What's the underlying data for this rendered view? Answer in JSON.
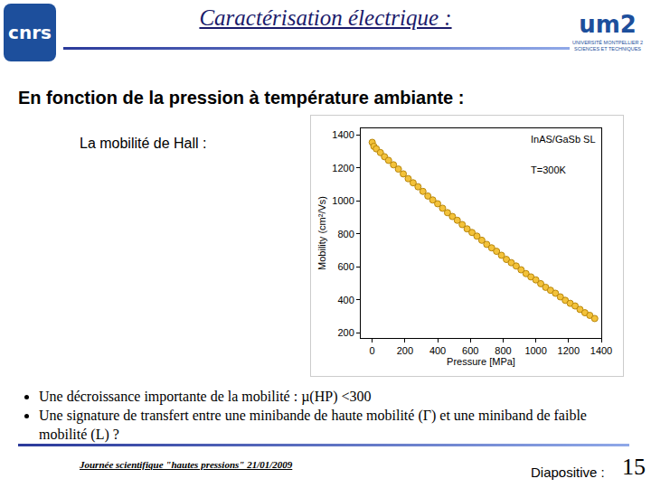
{
  "slide": {
    "header": "Caractérisation électrique :",
    "logo_left": "cnrs",
    "logo_right": "um2",
    "logo_right_caption": "UNIVERSITÉ MONTPELLIER 2 SCIENCES ET TECHNIQUES",
    "subtitle": "En fonction de la pression à température ambiante :",
    "chart_label": "La mobilité de Hall :",
    "bullets": [
      "Une décroissance importante  de la mobilité : µ(HP) <300",
      "Une signature de transfert entre une minibande de haute mobilité (Γ) et une miniband de faible mobilité (L)  ?"
    ],
    "footer": "Journée scientifique \"hautes pressions\" 21/01/2009",
    "slide_label": "Diapositive :",
    "slide_number": "15"
  },
  "chart_data": {
    "type": "scatter",
    "x_label": "Pressure [MPa]",
    "y_label": "Mobility (cm²/Vs)",
    "annotations": [
      "InAS/GaSb SL",
      "T=300K"
    ],
    "x": [
      0,
      10,
      25,
      50,
      75,
      100,
      130,
      160,
      190,
      220,
      250,
      280,
      310,
      340,
      370,
      400,
      430,
      460,
      490,
      520,
      550,
      580,
      610,
      640,
      670,
      700,
      730,
      760,
      790,
      820,
      850,
      880,
      910,
      940,
      970,
      1000,
      1030,
      1060,
      1090,
      1120,
      1150,
      1180,
      1210,
      1240,
      1270,
      1300,
      1330,
      1360
    ],
    "values": [
      1355,
      1331,
      1316,
      1293,
      1268,
      1246,
      1219,
      1193,
      1164,
      1135,
      1110,
      1086,
      1058,
      1030,
      1006,
      983,
      956,
      929,
      906,
      883,
      857,
      831,
      809,
      787,
      762,
      737,
      716,
      695,
      671,
      646,
      626,
      606,
      583,
      560,
      540,
      522,
      499,
      477,
      459,
      441,
      419,
      398,
      380,
      364,
      343,
      323,
      307,
      288
    ],
    "color": "#f3c23a",
    "marker": "circle",
    "xlim": [
      -70,
      1400
    ],
    "xticks": [
      0,
      200,
      400,
      600,
      800,
      1000,
      1200,
      1400
    ],
    "ylim": [
      170,
      1440
    ],
    "yticks": [
      200,
      400,
      600,
      800,
      1000,
      1200,
      1400
    ],
    "grid": false
  }
}
